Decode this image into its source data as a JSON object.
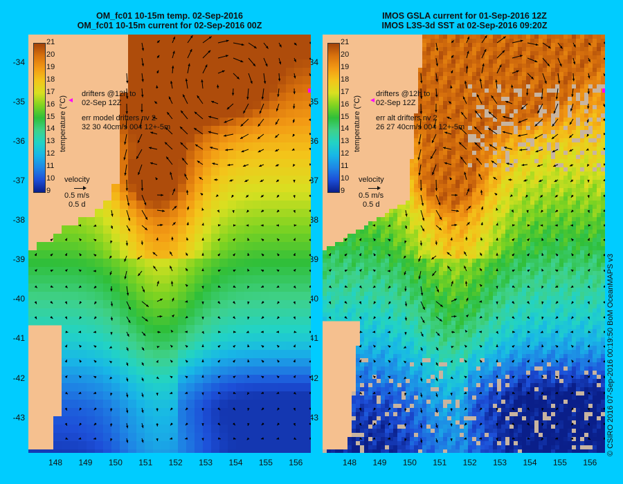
{
  "panels": [
    {
      "title_line1": "OM_fc01 10-15m temp. 02-Sep-2016",
      "title_line2": "OM_fc01 10-15m current for 02-Sep-2016 00Z",
      "drifters_line1": "drifters @12h to",
      "drifters_line2": "02-Sep 12Z",
      "err_line1": "err model drifters nv 2",
      "err_line2": "32 30 40cm/s 004 12+-5m",
      "field": "model"
    },
    {
      "title_line1": "IMOS GSLA current for 01-Sep-2016 12Z",
      "title_line2": "IMOS L3S-3d SST at 02-Sep-2016 09:20Z",
      "drifters_line1": "drifters @12h to",
      "drifters_line2": "02-Sep 12Z",
      "err_line1": "err alt drifters nv 2",
      "err_line2": "26 27 40cm/s 004 12+-5m",
      "field": "satellite"
    }
  ],
  "colorbar": {
    "title": "temperature (°C)",
    "ticks": [
      "21",
      "20",
      "19",
      "18",
      "17",
      "16",
      "15",
      "14",
      "13",
      "12",
      "11",
      "10",
      "9"
    ],
    "range": [
      9,
      21
    ]
  },
  "velocity_legend": {
    "label": "velocity",
    "speed": "0.5 m/s",
    "duration": "0.5 d"
  },
  "axes": {
    "lat_ticks": [
      "-34",
      "-35",
      "-36",
      "-37",
      "-38",
      "-39",
      "-40",
      "-41",
      "-42",
      "-43"
    ],
    "lon_ticks": [
      "148",
      "149",
      "150",
      "151",
      "152",
      "153",
      "154",
      "155",
      "156"
    ],
    "lat_range": [
      -33.3,
      -43.9
    ],
    "lon_range": [
      147.1,
      156.5
    ]
  },
  "credit": "© CSIRO 2016  07-Sep-2016 00:19:50 BoM OceanMAPS v3",
  "colors": {
    "background": "#00ccff",
    "land": "#f5c08f",
    "missing": "#c8b4a0",
    "arrow": "#000000",
    "marker": "#ff00ff"
  }
}
